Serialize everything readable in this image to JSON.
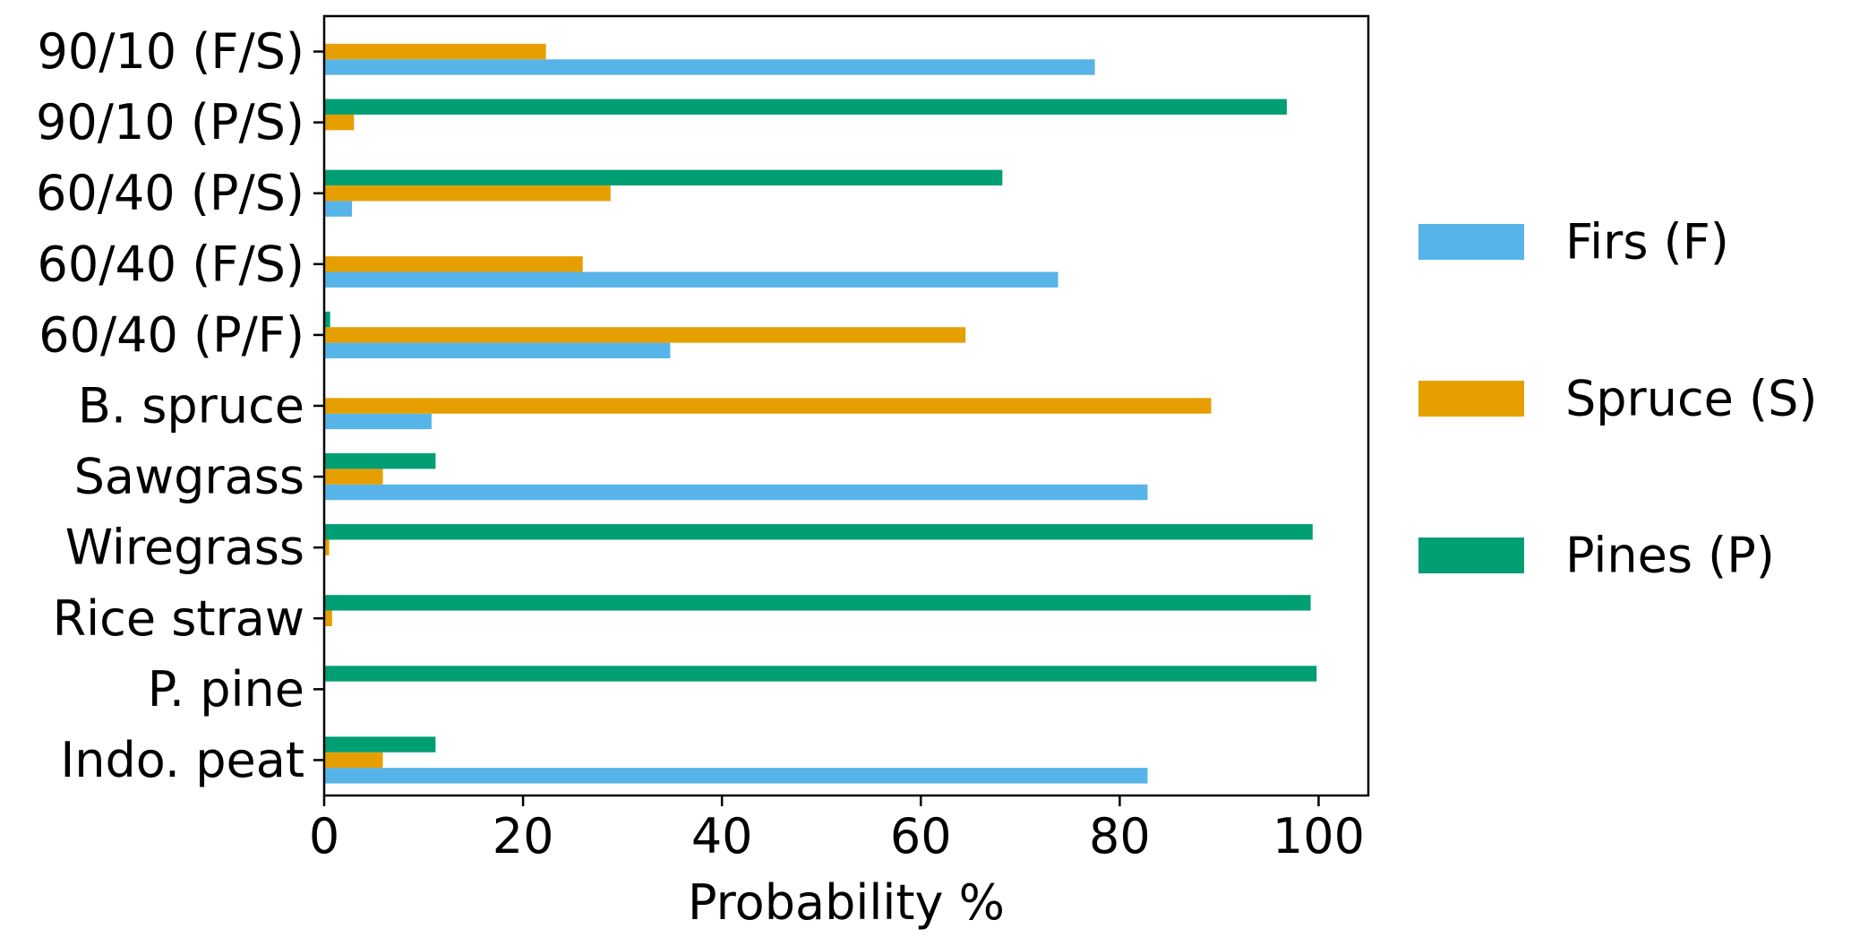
{
  "chart_data": {
    "type": "bar",
    "orientation": "horizontal",
    "title": "",
    "xlabel": "Probability %",
    "ylabel": "",
    "xlim": [
      0,
      105
    ],
    "xticks": [
      0,
      20,
      40,
      60,
      80,
      100
    ],
    "grid": false,
    "legend_position": "right, outside plot",
    "categories": [
      "90/10 (F/S)",
      "90/10 (P/S)",
      "60/40 (P/S)",
      "60/40 (F/S)",
      "60/40 (P/F)",
      "B. spruce",
      "Sawgrass",
      "Wiregrass",
      "Rice straw",
      "P. pine",
      "Indo. peat"
    ],
    "series": [
      {
        "name": "Firs (F)",
        "color": "#56b4e9",
        "values": [
          77.5,
          0,
          2.8,
          73.8,
          34.8,
          10.8,
          82.8,
          0,
          0,
          0,
          82.8
        ]
      },
      {
        "name": "Spruce (S)",
        "color": "#e69f00",
        "values": [
          22.3,
          3.0,
          28.8,
          26.0,
          64.5,
          89.2,
          5.9,
          0.5,
          0.8,
          0,
          5.9
        ]
      },
      {
        "name": "Pines (P)",
        "color": "#009e73",
        "values": [
          0,
          96.8,
          68.2,
          0,
          0.6,
          0,
          11.2,
          99.4,
          99.2,
          99.8,
          11.2
        ]
      }
    ]
  }
}
